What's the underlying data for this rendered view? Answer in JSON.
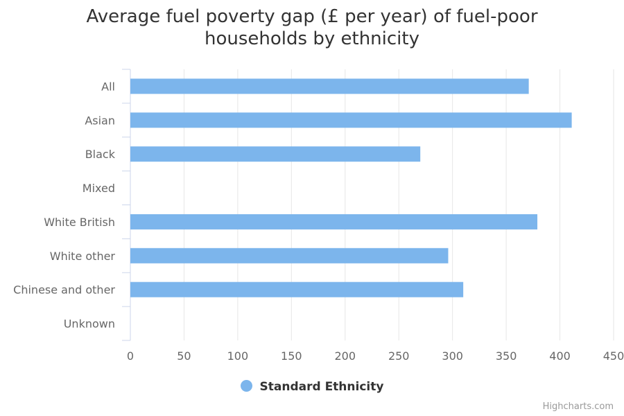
{
  "chart_data": {
    "type": "bar",
    "orientation": "horizontal",
    "title": "Average fuel poverty gap (£ per year) of fuel-poor households by ethnicity",
    "title_lines": [
      "Average fuel poverty gap (£ per year) of fuel-poor",
      "households by ethnicity"
    ],
    "categories": [
      "All",
      "Asian",
      "Black",
      "Mixed",
      "White British",
      "White other",
      "Chinese and other",
      "Unknown"
    ],
    "series": [
      {
        "name": "Standard Ethnicity",
        "color": "#7cb5ec",
        "values": [
          371,
          411,
          270,
          null,
          379,
          296,
          310,
          null
        ]
      }
    ],
    "xlim": [
      0,
      450
    ],
    "x_ticks": [
      0,
      50,
      100,
      150,
      200,
      250,
      300,
      350,
      400,
      450
    ],
    "grid": true,
    "legend_position": "bottom-center"
  },
  "credits": "Highcharts.com"
}
